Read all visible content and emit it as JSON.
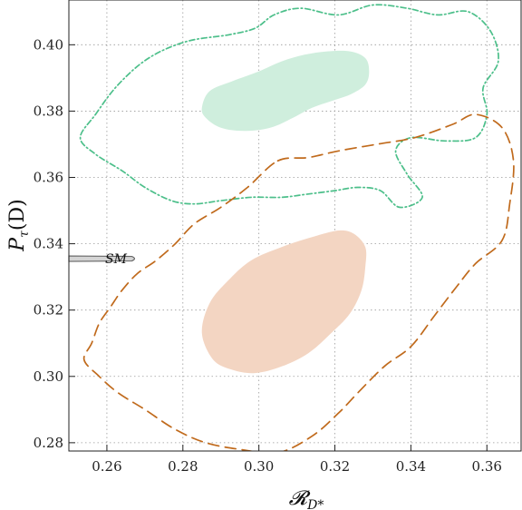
{
  "chart_data": {
    "type": "contour",
    "xlabel": "𝓡",
    "xlabel_sub": "D*",
    "ylabel": "P",
    "ylabel_sub": "τ",
    "ylabel_suffix": "(D)",
    "xlim": [
      0.25,
      0.369
    ],
    "ylim": [
      0.2775,
      0.4135
    ],
    "x_ticks": [
      "0.26",
      "0.28",
      "0.30",
      "0.32",
      "0.34",
      "0.36"
    ],
    "x_tick_values": [
      0.26,
      0.28,
      0.3,
      0.32,
      0.34,
      0.36
    ],
    "y_ticks": [
      "0.28",
      "0.30",
      "0.32",
      "0.34",
      "0.36",
      "0.38",
      "0.40"
    ],
    "y_tick_values": [
      0.28,
      0.3,
      0.32,
      0.34,
      0.36,
      0.38,
      0.4
    ],
    "grid": true,
    "colors": {
      "green_fill": "#cfeedd",
      "green_line": "#4cbf8a",
      "orange_fill": "#f3d5c2",
      "orange_line": "#c06a1c",
      "sm": "#666666"
    },
    "regions": [
      {
        "style": "filled",
        "color": "green",
        "points": [
          [
            0.285,
            0.381
          ],
          [
            0.287,
            0.386
          ],
          [
            0.293,
            0.389
          ],
          [
            0.3,
            0.392
          ],
          [
            0.306,
            0.395
          ],
          [
            0.312,
            0.397
          ],
          [
            0.318,
            0.398
          ],
          [
            0.324,
            0.398
          ],
          [
            0.328,
            0.396
          ],
          [
            0.329,
            0.392
          ],
          [
            0.328,
            0.388
          ],
          [
            0.324,
            0.385
          ],
          [
            0.319,
            0.383
          ],
          [
            0.314,
            0.381
          ],
          [
            0.309,
            0.378
          ],
          [
            0.303,
            0.375
          ],
          [
            0.296,
            0.374
          ],
          [
            0.29,
            0.375
          ],
          [
            0.286,
            0.378
          ]
        ]
      },
      {
        "style": "filled",
        "color": "orange",
        "points": [
          [
            0.285,
            0.313
          ],
          [
            0.287,
            0.322
          ],
          [
            0.292,
            0.329
          ],
          [
            0.298,
            0.335
          ],
          [
            0.306,
            0.339
          ],
          [
            0.314,
            0.342
          ],
          [
            0.321,
            0.344
          ],
          [
            0.325,
            0.343
          ],
          [
            0.328,
            0.339
          ],
          [
            0.328,
            0.333
          ],
          [
            0.327,
            0.326
          ],
          [
            0.324,
            0.319
          ],
          [
            0.319,
            0.313
          ],
          [
            0.313,
            0.307
          ],
          [
            0.306,
            0.303
          ],
          [
            0.299,
            0.301
          ],
          [
            0.293,
            0.302
          ],
          [
            0.288,
            0.305
          ]
        ]
      },
      {
        "style": "dash-dot",
        "color": "green",
        "points": [
          [
            0.257,
            0.379
          ],
          [
            0.263,
            0.388
          ],
          [
            0.271,
            0.396
          ],
          [
            0.281,
            0.401
          ],
          [
            0.292,
            0.403
          ],
          [
            0.299,
            0.405
          ],
          [
            0.304,
            0.409
          ],
          [
            0.311,
            0.411
          ],
          [
            0.321,
            0.409
          ],
          [
            0.33,
            0.412
          ],
          [
            0.339,
            0.411
          ],
          [
            0.347,
            0.409
          ],
          [
            0.355,
            0.41
          ],
          [
            0.361,
            0.404
          ],
          [
            0.363,
            0.395
          ],
          [
            0.359,
            0.387
          ],
          [
            0.36,
            0.379
          ],
          [
            0.357,
            0.372
          ],
          [
            0.349,
            0.371
          ],
          [
            0.34,
            0.372
          ],
          [
            0.336,
            0.368
          ],
          [
            0.339,
            0.361
          ],
          [
            0.343,
            0.354
          ],
          [
            0.337,
            0.351
          ],
          [
            0.332,
            0.356
          ],
          [
            0.326,
            0.357
          ],
          [
            0.32,
            0.356
          ],
          [
            0.313,
            0.355
          ],
          [
            0.306,
            0.354
          ],
          [
            0.298,
            0.354
          ],
          [
            0.29,
            0.353
          ],
          [
            0.283,
            0.352
          ],
          [
            0.277,
            0.353
          ],
          [
            0.27,
            0.357
          ],
          [
            0.264,
            0.362
          ],
          [
            0.257,
            0.367
          ],
          [
            0.253,
            0.372
          ]
        ]
      },
      {
        "style": "dashed",
        "color": "orange",
        "points": [
          [
            0.305,
            0.365
          ],
          [
            0.313,
            0.366
          ],
          [
            0.321,
            0.368
          ],
          [
            0.331,
            0.37
          ],
          [
            0.341,
            0.372
          ],
          [
            0.351,
            0.376
          ],
          [
            0.357,
            0.379
          ],
          [
            0.364,
            0.375
          ],
          [
            0.367,
            0.365
          ],
          [
            0.366,
            0.352
          ],
          [
            0.364,
            0.341
          ],
          [
            0.357,
            0.334
          ],
          [
            0.352,
            0.327
          ],
          [
            0.346,
            0.318
          ],
          [
            0.34,
            0.309
          ],
          [
            0.333,
            0.303
          ],
          [
            0.326,
            0.295
          ],
          [
            0.321,
            0.289
          ],
          [
            0.314,
            0.282
          ],
          [
            0.305,
            0.277
          ],
          [
            0.295,
            0.278
          ],
          [
            0.286,
            0.28
          ],
          [
            0.278,
            0.284
          ],
          [
            0.27,
            0.29
          ],
          [
            0.263,
            0.295
          ],
          [
            0.258,
            0.3
          ],
          [
            0.254,
            0.305
          ],
          [
            0.256,
            0.31
          ],
          [
            0.258,
            0.316
          ],
          [
            0.261,
            0.321
          ],
          [
            0.264,
            0.326
          ],
          [
            0.268,
            0.331
          ],
          [
            0.273,
            0.335
          ],
          [
            0.278,
            0.34
          ],
          [
            0.283,
            0.346
          ],
          [
            0.29,
            0.351
          ],
          [
            0.297,
            0.357
          ]
        ]
      }
    ],
    "sm_point": {
      "label": "SM",
      "x_range": [
        0.25,
        0.268
      ],
      "y": 0.3355
    }
  }
}
